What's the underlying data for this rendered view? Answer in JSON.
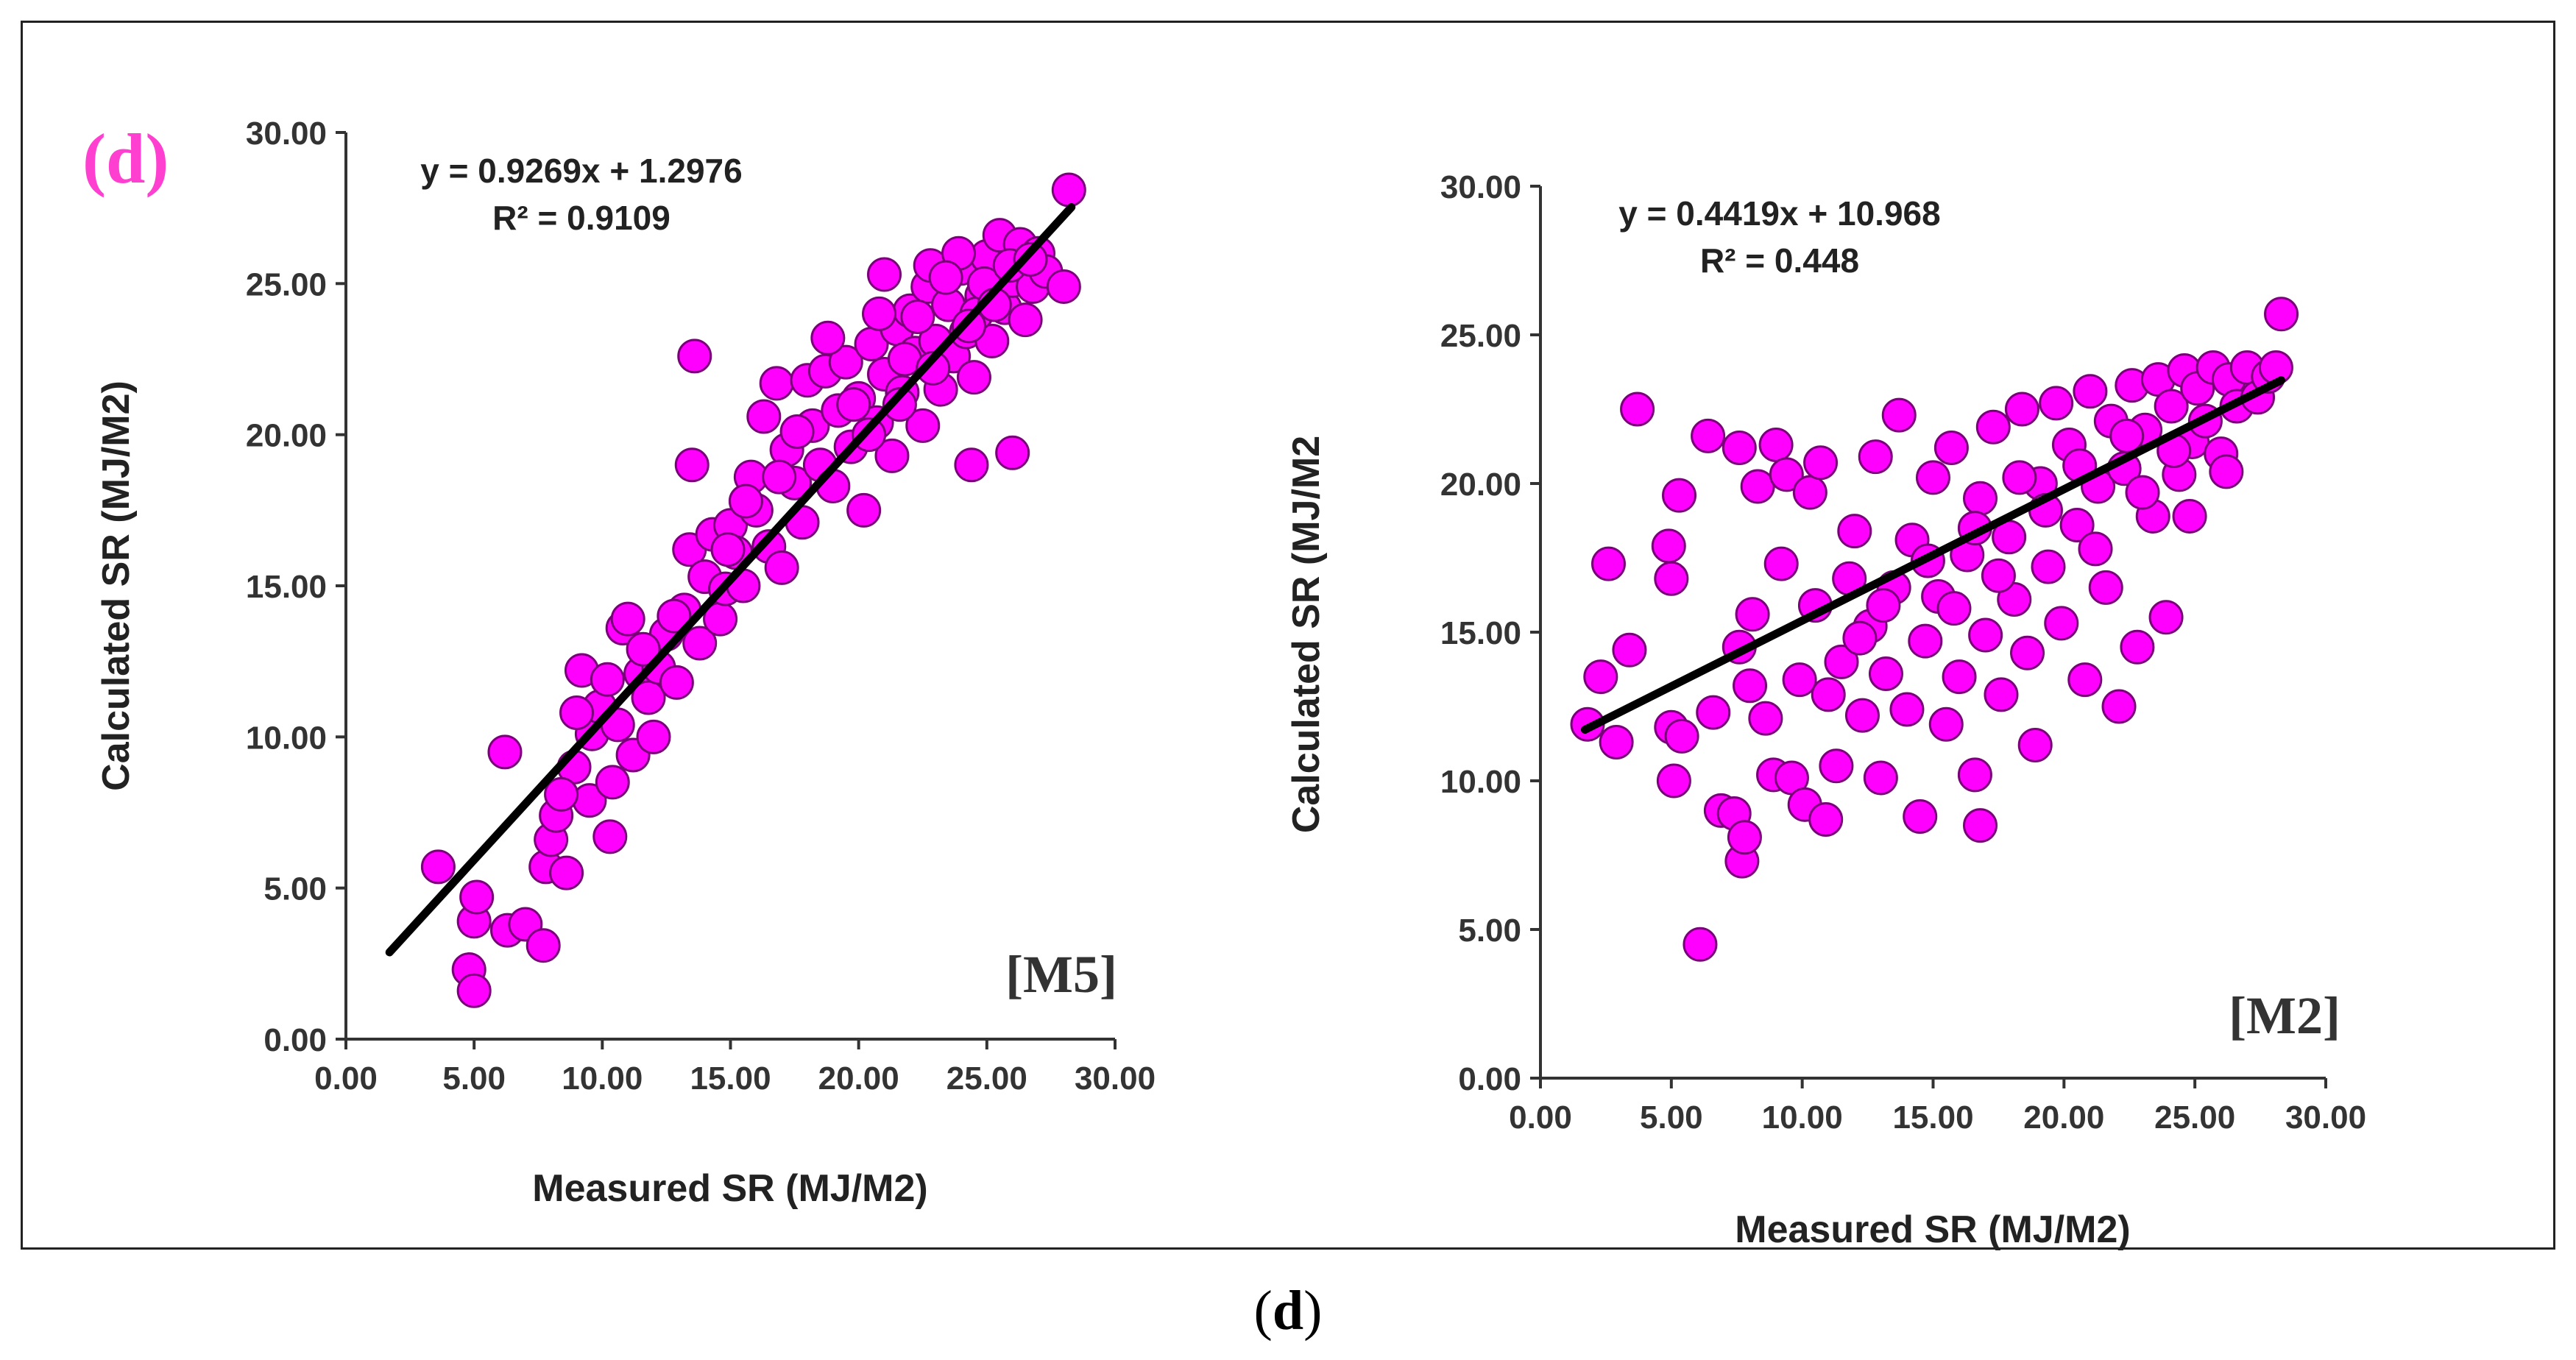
{
  "panel_label": "(d)",
  "caption": {
    "open": "(",
    "letter": "d",
    "close": ")"
  },
  "colors": {
    "marker": "#FF00FF",
    "marker_edge": "#7A007A",
    "line": "#000000",
    "panel_label": "#FF3FD0",
    "axis": "#333333"
  },
  "chart_data": [
    {
      "type": "scatter",
      "model": "[M5]",
      "equation": "y = 0.9269x + 1.2976",
      "r_squared": "R² = 0.9109",
      "xlabel": "Measured SR (MJ/M2)",
      "ylabel": "Calculated  SR (MJ/M2)",
      "xlim": [
        0,
        30
      ],
      "ylim": [
        0,
        30
      ],
      "xticks": [
        "0.00",
        "5.00",
        "10.00",
        "15.00",
        "20.00",
        "25.00",
        "30.00"
      ],
      "yticks": [
        "0.00",
        "5.00",
        "10.00",
        "15.00",
        "20.00",
        "25.00",
        "30.00"
      ],
      "trendline": {
        "slope": 0.9269,
        "intercept": 1.2976,
        "x_range": [
          1.7,
          28.3
        ]
      },
      "points": [
        [
          3.6,
          5.7
        ],
        [
          4.8,
          2.3
        ],
        [
          5.0,
          1.6
        ],
        [
          5.0,
          3.9
        ],
        [
          5.1,
          4.7
        ],
        [
          6.2,
          9.5
        ],
        [
          6.3,
          3.6
        ],
        [
          7.0,
          3.8
        ],
        [
          7.7,
          3.1
        ],
        [
          7.8,
          5.7
        ],
        [
          8.0,
          6.6
        ],
        [
          8.2,
          7.4
        ],
        [
          8.6,
          5.5
        ],
        [
          8.9,
          9.0
        ],
        [
          9.2,
          12.2
        ],
        [
          9.5,
          7.9
        ],
        [
          9.6,
          10.1
        ],
        [
          9.9,
          11.0
        ],
        [
          10.3,
          6.7
        ],
        [
          10.4,
          8.5
        ],
        [
          10.6,
          10.4
        ],
        [
          10.8,
          13.6
        ],
        [
          11.0,
          13.9
        ],
        [
          11.2,
          9.4
        ],
        [
          11.5,
          12.1
        ],
        [
          11.8,
          11.3
        ],
        [
          12.0,
          10.0
        ],
        [
          12.2,
          12.3
        ],
        [
          12.5,
          13.4
        ],
        [
          12.9,
          11.8
        ],
        [
          13.2,
          14.2
        ],
        [
          13.4,
          16.2
        ],
        [
          13.5,
          19.0
        ],
        [
          13.6,
          22.6
        ],
        [
          13.8,
          13.1
        ],
        [
          14.0,
          15.3
        ],
        [
          14.3,
          16.7
        ],
        [
          14.6,
          13.9
        ],
        [
          14.8,
          14.9
        ],
        [
          15.0,
          17.0
        ],
        [
          15.2,
          16.1
        ],
        [
          15.5,
          15.0
        ],
        [
          15.8,
          18.6
        ],
        [
          16.0,
          17.5
        ],
        [
          16.3,
          20.6
        ],
        [
          16.5,
          16.3
        ],
        [
          16.8,
          21.7
        ],
        [
          17.0,
          15.6
        ],
        [
          17.2,
          19.5
        ],
        [
          17.5,
          18.4
        ],
        [
          17.8,
          17.1
        ],
        [
          18.0,
          21.8
        ],
        [
          18.2,
          20.3
        ],
        [
          18.5,
          19.0
        ],
        [
          18.7,
          22.1
        ],
        [
          19.0,
          18.3
        ],
        [
          19.2,
          20.8
        ],
        [
          19.5,
          22.4
        ],
        [
          19.7,
          19.6
        ],
        [
          20.0,
          21.2
        ],
        [
          20.2,
          17.5
        ],
        [
          20.5,
          23.0
        ],
        [
          20.7,
          20.4
        ],
        [
          21.0,
          22.0
        ],
        [
          21.0,
          25.3
        ],
        [
          21.3,
          19.3
        ],
        [
          21.5,
          23.5
        ],
        [
          21.7,
          21.4
        ],
        [
          22.0,
          24.1
        ],
        [
          22.2,
          22.7
        ],
        [
          22.5,
          20.3
        ],
        [
          22.7,
          24.9
        ],
        [
          23.0,
          23.1
        ],
        [
          23.2,
          21.5
        ],
        [
          23.5,
          24.3
        ],
        [
          23.7,
          22.6
        ],
        [
          24.0,
          25.5
        ],
        [
          24.2,
          23.4
        ],
        [
          24.4,
          19.0
        ],
        [
          24.5,
          21.9
        ],
        [
          24.8,
          24.6
        ],
        [
          25.0,
          25.9
        ],
        [
          25.2,
          23.1
        ],
        [
          25.5,
          26.6
        ],
        [
          25.7,
          24.2
        ],
        [
          26.0,
          25.1
        ],
        [
          26.0,
          19.4
        ],
        [
          26.3,
          26.3
        ],
        [
          26.5,
          23.8
        ],
        [
          26.8,
          24.9
        ],
        [
          27.0,
          26.0
        ],
        [
          27.3,
          25.4
        ],
        [
          28.0,
          24.9
        ],
        [
          28.2,
          28.1
        ],
        [
          22.8,
          25.6
        ],
        [
          23.9,
          26.0
        ],
        [
          24.6,
          24.0
        ],
        [
          21.8,
          22.5
        ],
        [
          20.8,
          24.0
        ],
        [
          19.8,
          21.0
        ],
        [
          18.8,
          23.2
        ],
        [
          17.6,
          20.1
        ],
        [
          16.9,
          18.6
        ],
        [
          15.6,
          17.8
        ],
        [
          14.9,
          16.2
        ],
        [
          12.8,
          14.0
        ],
        [
          11.6,
          12.9
        ],
        [
          10.2,
          11.9
        ],
        [
          9.0,
          10.8
        ],
        [
          8.4,
          8.1
        ],
        [
          22.3,
          23.9
        ],
        [
          23.4,
          25.2
        ],
        [
          24.9,
          25.0
        ],
        [
          25.9,
          25.6
        ],
        [
          26.7,
          25.8
        ],
        [
          20.4,
          20.0
        ],
        [
          21.6,
          21.0
        ],
        [
          22.9,
          22.2
        ],
        [
          24.3,
          23.6
        ],
        [
          25.3,
          24.3
        ]
      ]
    },
    {
      "type": "scatter",
      "model": "[M2]",
      "equation": "y = 0.4419x + 10.968",
      "r_squared": "R² = 0.448",
      "xlabel": "Measured SR (MJ/M2)",
      "ylabel": "Calculated  SR (MJ/M2",
      "xlim": [
        0,
        30
      ],
      "ylim": [
        0,
        30
      ],
      "xticks": [
        "0.00",
        "5.00",
        "10.00",
        "15.00",
        "20.00",
        "25.00",
        "30.00"
      ],
      "yticks": [
        "0.00",
        "5.00",
        "10.00",
        "15.00",
        "20.00",
        "25.00",
        "30.00"
      ],
      "trendline": {
        "slope": 0.4419,
        "intercept": 10.968,
        "x_range": [
          1.7,
          28.3
        ]
      },
      "points": [
        [
          1.8,
          11.9
        ],
        [
          2.3,
          13.5
        ],
        [
          2.6,
          17.3
        ],
        [
          2.9,
          11.3
        ],
        [
          3.4,
          14.4
        ],
        [
          3.7,
          22.5
        ],
        [
          4.9,
          17.9
        ],
        [
          5.0,
          16.8
        ],
        [
          5.0,
          11.8
        ],
        [
          5.1,
          10.0
        ],
        [
          5.3,
          19.6
        ],
        [
          5.4,
          11.5
        ],
        [
          6.1,
          4.5
        ],
        [
          6.4,
          21.6
        ],
        [
          6.6,
          12.3
        ],
        [
          6.9,
          9.0
        ],
        [
          7.4,
          8.9
        ],
        [
          7.6,
          21.2
        ],
        [
          7.6,
          14.5
        ],
        [
          7.7,
          7.3
        ],
        [
          7.8,
          8.1
        ],
        [
          8.0,
          13.2
        ],
        [
          8.1,
          15.6
        ],
        [
          8.3,
          19.9
        ],
        [
          8.6,
          12.1
        ],
        [
          8.9,
          10.2
        ],
        [
          9.0,
          21.3
        ],
        [
          9.2,
          17.3
        ],
        [
          9.4,
          20.3
        ],
        [
          9.6,
          10.1
        ],
        [
          9.9,
          13.4
        ],
        [
          10.1,
          9.2
        ],
        [
          10.3,
          19.7
        ],
        [
          10.5,
          15.9
        ],
        [
          10.7,
          20.7
        ],
        [
          10.9,
          8.7
        ],
        [
          11.0,
          12.9
        ],
        [
          11.3,
          10.5
        ],
        [
          11.5,
          14.0
        ],
        [
          11.8,
          16.8
        ],
        [
          12.0,
          18.4
        ],
        [
          12.3,
          12.2
        ],
        [
          12.6,
          15.2
        ],
        [
          12.8,
          20.9
        ],
        [
          13.0,
          10.1
        ],
        [
          13.2,
          13.6
        ],
        [
          13.5,
          16.5
        ],
        [
          13.7,
          22.3
        ],
        [
          14.0,
          12.4
        ],
        [
          14.2,
          18.1
        ],
        [
          14.5,
          8.8
        ],
        [
          14.7,
          14.7
        ],
        [
          15.0,
          20.2
        ],
        [
          15.2,
          16.2
        ],
        [
          15.5,
          11.9
        ],
        [
          15.7,
          21.2
        ],
        [
          16.0,
          13.5
        ],
        [
          16.3,
          17.6
        ],
        [
          16.6,
          10.2
        ],
        [
          16.8,
          8.5
        ],
        [
          16.8,
          19.5
        ],
        [
          17.0,
          14.9
        ],
        [
          17.3,
          21.9
        ],
        [
          17.6,
          12.9
        ],
        [
          17.9,
          18.2
        ],
        [
          18.1,
          16.1
        ],
        [
          18.4,
          22.5
        ],
        [
          18.6,
          14.3
        ],
        [
          18.9,
          11.2
        ],
        [
          19.1,
          20.0
        ],
        [
          19.4,
          17.2
        ],
        [
          19.7,
          22.7
        ],
        [
          19.9,
          15.3
        ],
        [
          20.2,
          21.3
        ],
        [
          20.5,
          18.6
        ],
        [
          20.8,
          13.4
        ],
        [
          21.0,
          23.1
        ],
        [
          21.3,
          19.9
        ],
        [
          21.6,
          16.5
        ],
        [
          21.8,
          22.1
        ],
        [
          22.1,
          12.5
        ],
        [
          22.3,
          20.5
        ],
        [
          22.6,
          23.3
        ],
        [
          22.8,
          14.5
        ],
        [
          23.1,
          21.8
        ],
        [
          23.4,
          18.9
        ],
        [
          23.6,
          23.5
        ],
        [
          23.9,
          15.5
        ],
        [
          24.1,
          22.6
        ],
        [
          24.4,
          20.3
        ],
        [
          24.6,
          23.8
        ],
        [
          24.9,
          21.4
        ],
        [
          25.1,
          23.2
        ],
        [
          25.4,
          22.1
        ],
        [
          25.7,
          23.9
        ],
        [
          26.0,
          21.0
        ],
        [
          26.3,
          23.5
        ],
        [
          26.6,
          22.6
        ],
        [
          27.0,
          23.9
        ],
        [
          27.4,
          22.9
        ],
        [
          27.8,
          23.6
        ],
        [
          28.3,
          25.7
        ],
        [
          28.1,
          23.9
        ],
        [
          15.8,
          15.8
        ],
        [
          17.5,
          16.9
        ],
        [
          19.3,
          19.1
        ],
        [
          21.2,
          17.8
        ],
        [
          23.0,
          19.7
        ],
        [
          24.8,
          18.9
        ],
        [
          26.2,
          20.4
        ],
        [
          20.6,
          20.6
        ],
        [
          22.4,
          21.6
        ],
        [
          24.2,
          21.1
        ],
        [
          18.3,
          20.2
        ],
        [
          16.6,
          18.5
        ],
        [
          14.8,
          17.4
        ],
        [
          13.1,
          15.9
        ],
        [
          12.2,
          14.8
        ]
      ]
    }
  ]
}
